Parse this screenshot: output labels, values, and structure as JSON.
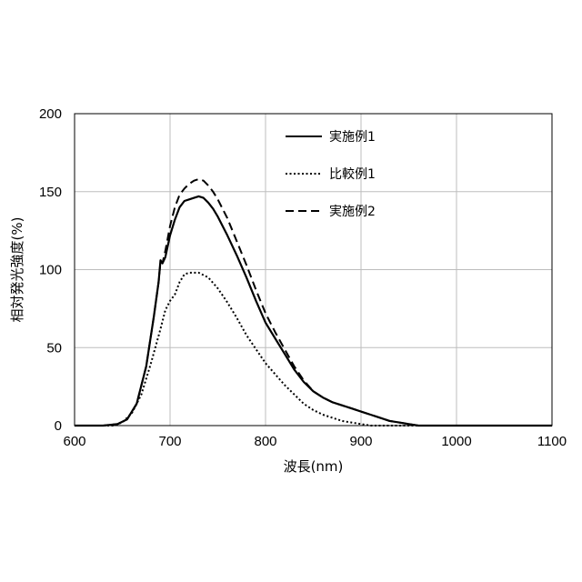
{
  "chart_data": {
    "type": "line",
    "xlabel": "波長(nm)",
    "ylabel": "相対発光強度(%)",
    "xlim": [
      600,
      1100
    ],
    "ylim": [
      0,
      200
    ],
    "xticks": [
      600,
      700,
      800,
      900,
      1000,
      1100
    ],
    "yticks": [
      0,
      50,
      100,
      150,
      200
    ],
    "grid": true,
    "legend_position": "top-right",
    "series": [
      {
        "name": "実施例1",
        "style": "solid",
        "color": "#000000",
        "points": [
          [
            600,
            0
          ],
          [
            630,
            0
          ],
          [
            645,
            1
          ],
          [
            655,
            4
          ],
          [
            665,
            14
          ],
          [
            675,
            38
          ],
          [
            683,
            70
          ],
          [
            688,
            92
          ],
          [
            690,
            106
          ],
          [
            692,
            104
          ],
          [
            695,
            108
          ],
          [
            700,
            122
          ],
          [
            705,
            132
          ],
          [
            710,
            140
          ],
          [
            715,
            144
          ],
          [
            720,
            145
          ],
          [
            725,
            146
          ],
          [
            730,
            147
          ],
          [
            735,
            146
          ],
          [
            740,
            143
          ],
          [
            745,
            139
          ],
          [
            750,
            134
          ],
          [
            760,
            122
          ],
          [
            770,
            109
          ],
          [
            780,
            95
          ],
          [
            790,
            80
          ],
          [
            800,
            66
          ],
          [
            810,
            56
          ],
          [
            820,
            46
          ],
          [
            830,
            36
          ],
          [
            840,
            28
          ],
          [
            850,
            22
          ],
          [
            860,
            18
          ],
          [
            870,
            15
          ],
          [
            880,
            13
          ],
          [
            890,
            11
          ],
          [
            900,
            9
          ],
          [
            910,
            7
          ],
          [
            920,
            5
          ],
          [
            930,
            3
          ],
          [
            940,
            2
          ],
          [
            950,
            1
          ],
          [
            960,
            0
          ],
          [
            1000,
            0
          ],
          [
            1100,
            0
          ]
        ]
      },
      {
        "name": "比較例1",
        "style": "dotted",
        "color": "#000000",
        "points": [
          [
            600,
            0
          ],
          [
            640,
            0
          ],
          [
            650,
            2
          ],
          [
            660,
            8
          ],
          [
            670,
            20
          ],
          [
            680,
            40
          ],
          [
            690,
            62
          ],
          [
            695,
            74
          ],
          [
            700,
            80
          ],
          [
            705,
            84
          ],
          [
            710,
            92
          ],
          [
            715,
            97
          ],
          [
            720,
            98
          ],
          [
            730,
            98
          ],
          [
            740,
            95
          ],
          [
            750,
            88
          ],
          [
            760,
            79
          ],
          [
            770,
            69
          ],
          [
            780,
            58
          ],
          [
            790,
            49
          ],
          [
            800,
            40
          ],
          [
            810,
            33
          ],
          [
            820,
            26
          ],
          [
            830,
            20
          ],
          [
            840,
            14
          ],
          [
            850,
            10
          ],
          [
            860,
            7
          ],
          [
            870,
            5
          ],
          [
            880,
            3
          ],
          [
            890,
            2
          ],
          [
            900,
            1
          ],
          [
            910,
            0
          ],
          [
            1100,
            0
          ]
        ]
      },
      {
        "name": "実施例2",
        "style": "dashed",
        "color": "#000000",
        "points": [
          [
            600,
            0
          ],
          [
            630,
            0
          ],
          [
            645,
            1
          ],
          [
            655,
            4
          ],
          [
            665,
            14
          ],
          [
            675,
            38
          ],
          [
            683,
            70
          ],
          [
            688,
            92
          ],
          [
            690,
            105
          ],
          [
            692,
            104
          ],
          [
            695,
            112
          ],
          [
            700,
            128
          ],
          [
            705,
            140
          ],
          [
            710,
            148
          ],
          [
            715,
            152
          ],
          [
            720,
            155
          ],
          [
            725,
            157
          ],
          [
            730,
            158
          ],
          [
            735,
            157
          ],
          [
            740,
            154
          ],
          [
            745,
            150
          ],
          [
            750,
            145
          ],
          [
            760,
            133
          ],
          [
            770,
            118
          ],
          [
            780,
            103
          ],
          [
            790,
            87
          ],
          [
            800,
            72
          ],
          [
            810,
            60
          ],
          [
            820,
            49
          ],
          [
            830,
            38
          ],
          [
            840,
            29
          ],
          [
            850,
            22
          ],
          [
            860,
            18
          ],
          [
            870,
            15
          ],
          [
            880,
            13
          ],
          [
            890,
            11
          ],
          [
            900,
            9
          ],
          [
            910,
            7
          ],
          [
            920,
            5
          ],
          [
            930,
            3
          ],
          [
            940,
            2
          ],
          [
            950,
            1
          ],
          [
            960,
            0
          ],
          [
            1100,
            0
          ]
        ]
      }
    ]
  }
}
